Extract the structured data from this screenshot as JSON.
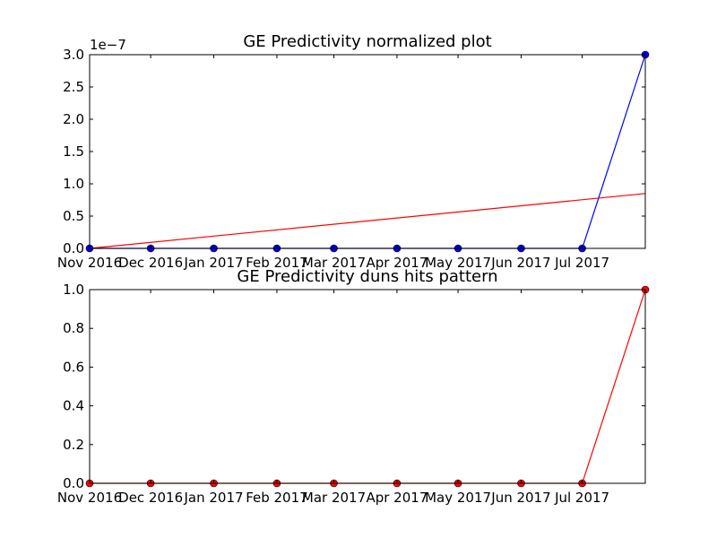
{
  "chart_data": [
    {
      "type": "line",
      "title": "GE Predictivity normalized plot",
      "xlabel": "",
      "ylabel": "",
      "x": [
        "2016-11-01",
        "2016-12-01",
        "2017-01-01",
        "2017-02-01",
        "2017-03-01",
        "2017-04-01",
        "2017-05-01",
        "2017-06-01",
        "2017-07-01",
        "2017-08-01"
      ],
      "x_tick_labels": [
        "Nov 2016",
        "Dec 2016",
        "Jan 2017",
        "Feb 2017",
        "Mar 2017",
        "Apr 2017",
        "May 2017",
        "Jun 2017",
        "Jul 2017"
      ],
      "ylim": [
        0,
        3e-07
      ],
      "y_offset_text": "1e−7",
      "y_tick_labels": [
        "0.0",
        "0.5",
        "1.0",
        "1.5",
        "2.0",
        "2.5",
        "3.0"
      ],
      "series": [
        {
          "values": [
            0,
            0,
            0,
            0,
            0,
            0,
            0,
            0,
            0,
            3e-07
          ],
          "color": "#0000ff",
          "marker": "circle"
        },
        {
          "values": [
            0,
            null,
            null,
            null,
            null,
            null,
            null,
            null,
            null,
            8.5e-08
          ],
          "color": "#ff0000",
          "marker": "none"
        }
      ],
      "grid": false
    },
    {
      "type": "line",
      "title": "GE Predictivity duns hits pattern",
      "xlabel": "",
      "ylabel": "",
      "x": [
        "2016-11-01",
        "2016-12-01",
        "2017-01-01",
        "2017-02-01",
        "2017-03-01",
        "2017-04-01",
        "2017-05-01",
        "2017-06-01",
        "2017-07-01",
        "2017-08-01"
      ],
      "x_tick_labels": [
        "Nov 2016",
        "Dec 2016",
        "Jan 2017",
        "Feb 2017",
        "Mar 2017",
        "Apr 2017",
        "May 2017",
        "Jun 2017",
        "Jul 2017"
      ],
      "ylim": [
        0,
        1.0
      ],
      "y_tick_labels": [
        "0.0",
        "0.2",
        "0.4",
        "0.6",
        "0.8",
        "1.0"
      ],
      "series": [
        {
          "values": [
            0,
            0,
            0,
            0,
            0,
            0,
            0,
            0,
            0,
            1.0
          ],
          "color": "#ff0000",
          "marker": "circle"
        }
      ],
      "grid": false
    }
  ]
}
